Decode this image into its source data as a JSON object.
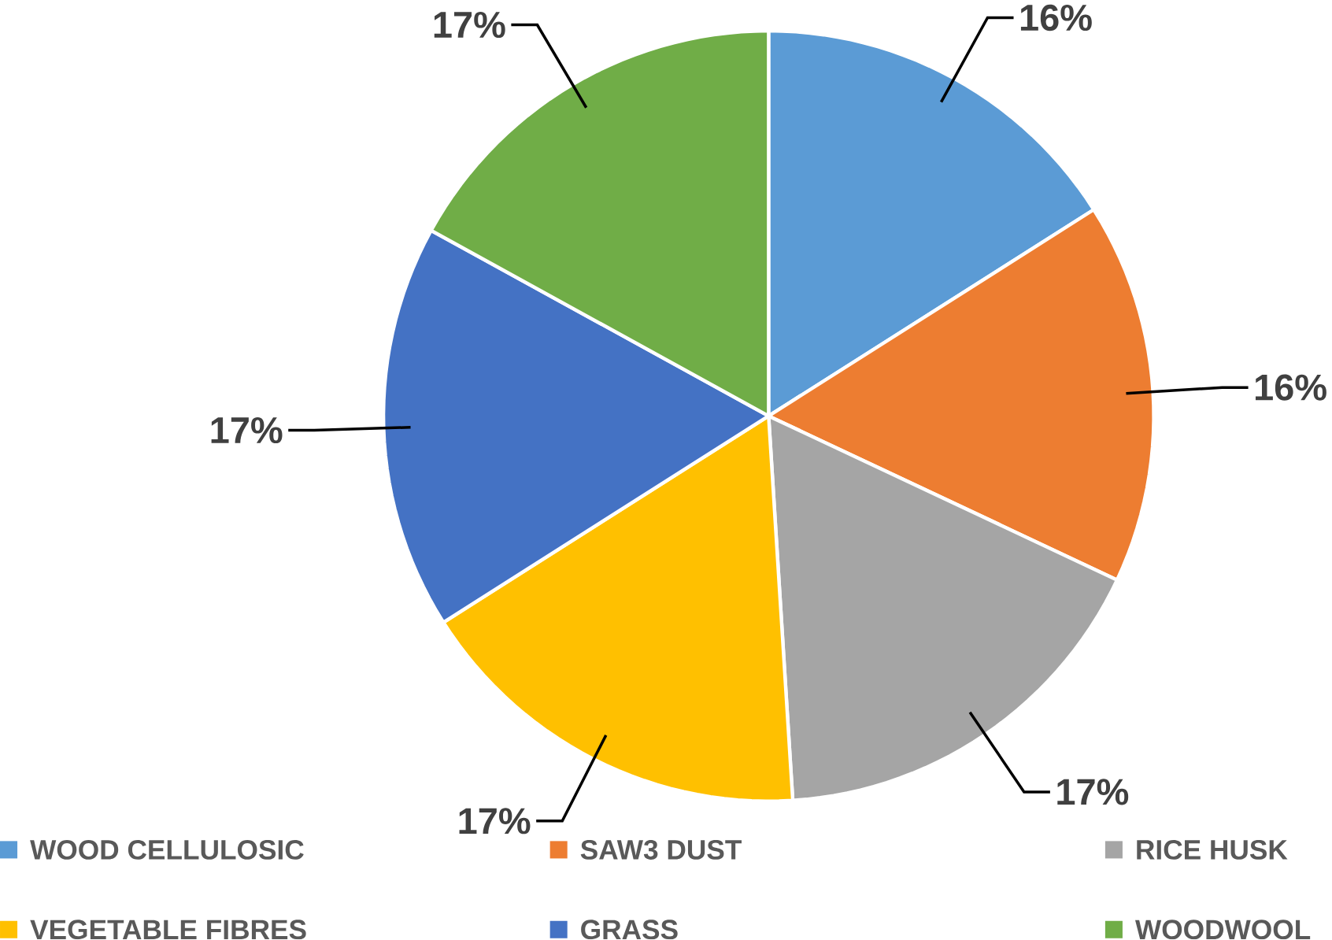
{
  "chart_data": {
    "type": "pie",
    "categories": [
      "WOOD CELLULOSIC",
      "SAW3 DUST",
      "RICE  HUSK",
      "VEGETABLE FIBRES",
      "GRASS",
      "WOODWOOL"
    ],
    "values": [
      16,
      16,
      17,
      17,
      17,
      17
    ],
    "value_labels": [
      "16%",
      "16%",
      "17%",
      "17%",
      "17%",
      "17%"
    ],
    "colors": [
      "#5b9bd5",
      "#ed7d31",
      "#a5a5a5",
      "#ffc000",
      "#4472c4",
      "#70ad47"
    ],
    "legend": "bottom"
  }
}
